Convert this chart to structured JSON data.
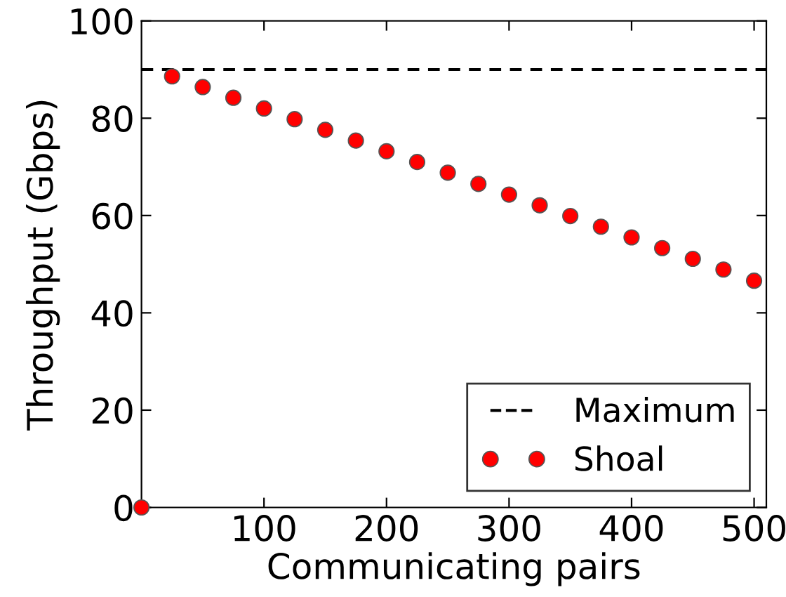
{
  "chart_data": {
    "type": "scatter",
    "xlabel": "Communicating pairs",
    "ylabel": "Throughput (Gbps)",
    "x": [
      0,
      25,
      50,
      75,
      100,
      125,
      150,
      175,
      200,
      225,
      250,
      275,
      300,
      325,
      350,
      375,
      400,
      425,
      450,
      475,
      500
    ],
    "series": [
      {
        "name": "Shoal",
        "color": "#ff0000",
        "values": [
          0,
          88.6,
          86.4,
          84.2,
          82.0,
          79.8,
          77.6,
          75.4,
          73.2,
          71.0,
          68.8,
          66.5,
          64.3,
          62.1,
          59.9,
          57.7,
          55.5,
          53.3,
          51.1,
          48.9,
          46.6
        ]
      }
    ],
    "ref_lines": [
      {
        "axis": "y",
        "value": 90,
        "label": "Maximum",
        "color": "#000000",
        "line_style": "dashed"
      }
    ],
    "xlim": [
      0,
      510
    ],
    "xticks": [
      100,
      200,
      300,
      400,
      500
    ],
    "ylim": [
      0,
      100
    ],
    "yticks": [
      0,
      20,
      40,
      60,
      80,
      100
    ],
    "marker": "circle",
    "legend": "bottom right",
    "grid": false
  }
}
